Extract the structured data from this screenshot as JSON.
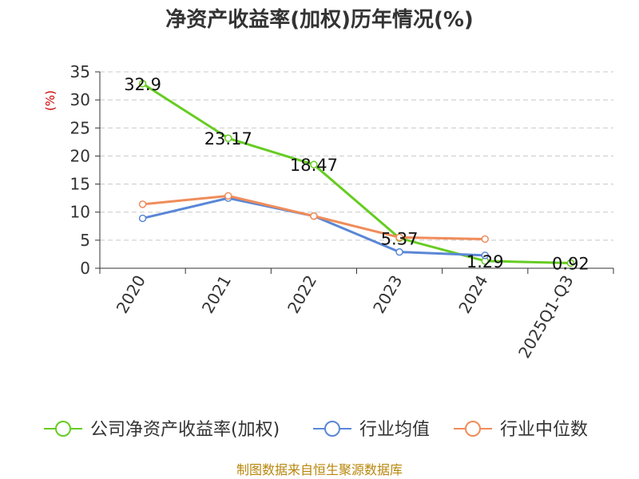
{
  "chart_data": {
    "type": "line",
    "title": "净资产收益率(加权)历年情况(%)",
    "ylabel": "(%)",
    "xlabel": "",
    "categories": [
      "2020",
      "2021",
      "2022",
      "2023",
      "2024",
      "2025Q1-Q3"
    ],
    "ylim": [
      0,
      35
    ],
    "yticks": [
      0,
      5,
      10,
      15,
      20,
      25,
      30,
      35
    ],
    "grid": true,
    "legend_position": "bottom",
    "series": [
      {
        "name": "公司净资产收益率(加权)",
        "color": "#66cc22",
        "values": [
          32.9,
          23.17,
          18.47,
          5.37,
          1.29,
          0.92
        ],
        "labels": [
          "32.9",
          "23.17",
          "18.47",
          "5.37",
          "1.29",
          "0.92"
        ]
      },
      {
        "name": "行业均值",
        "color": "#5a87d6",
        "values": [
          8.9,
          12.5,
          9.3,
          2.9,
          2.3,
          null
        ]
      },
      {
        "name": "行业中位数",
        "color": "#f08c5a",
        "values": [
          11.4,
          12.9,
          9.3,
          5.5,
          5.2,
          null
        ]
      }
    ]
  },
  "source": "制图数据来自恒生聚源数据库"
}
